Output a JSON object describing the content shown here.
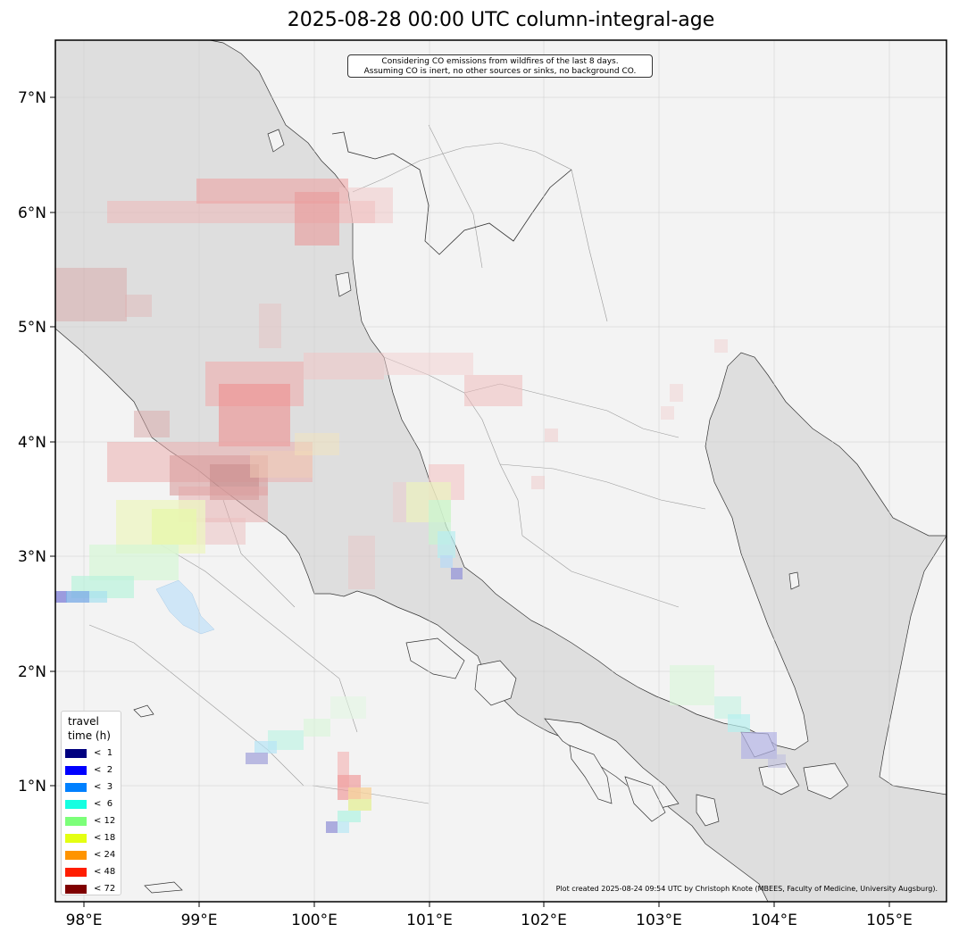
{
  "title": "2025-08-28 00:00 UTC column-integral-age",
  "note": {
    "line1": "Considering CO emissions from wildfires of the last 8 days.",
    "line2": "Assuming CO is inert, no other sources or sinks, no background CO."
  },
  "credit": "Plot created 2025-08-24 09:54 UTC by Christoph Knote (MBEES, Faculty of Medicine, University Augsburg).",
  "lon_ticks": [
    "98°E",
    "99°E",
    "100°E",
    "101°E",
    "102°E",
    "103°E",
    "104°E",
    "105°E"
  ],
  "lat_ticks": [
    "7°N",
    "6°N",
    "5°N",
    "4°N",
    "3°N",
    "2°N",
    "1°N"
  ],
  "legend": {
    "title_line1": "travel",
    "title_line2": "time (h)",
    "items": [
      {
        "label": "<  1",
        "color": "#00007f"
      },
      {
        "label": "<  2",
        "color": "#0000ff"
      },
      {
        "label": "<  3",
        "color": "#0080ff"
      },
      {
        "label": "<  6",
        "color": "#15ffe1"
      },
      {
        "label": "< 12",
        "color": "#7cff79"
      },
      {
        "label": "< 18",
        "color": "#e4ff12"
      },
      {
        "label": "< 24",
        "color": "#ff9400"
      },
      {
        "label": "< 48",
        "color": "#ff1d00"
      },
      {
        "label": "< 72",
        "color": "#7f0000"
      }
    ]
  },
  "colors": {
    "sea": "#dedede",
    "land": "#f3f3f3",
    "coast": "#333333",
    "border": "#999999"
  }
}
